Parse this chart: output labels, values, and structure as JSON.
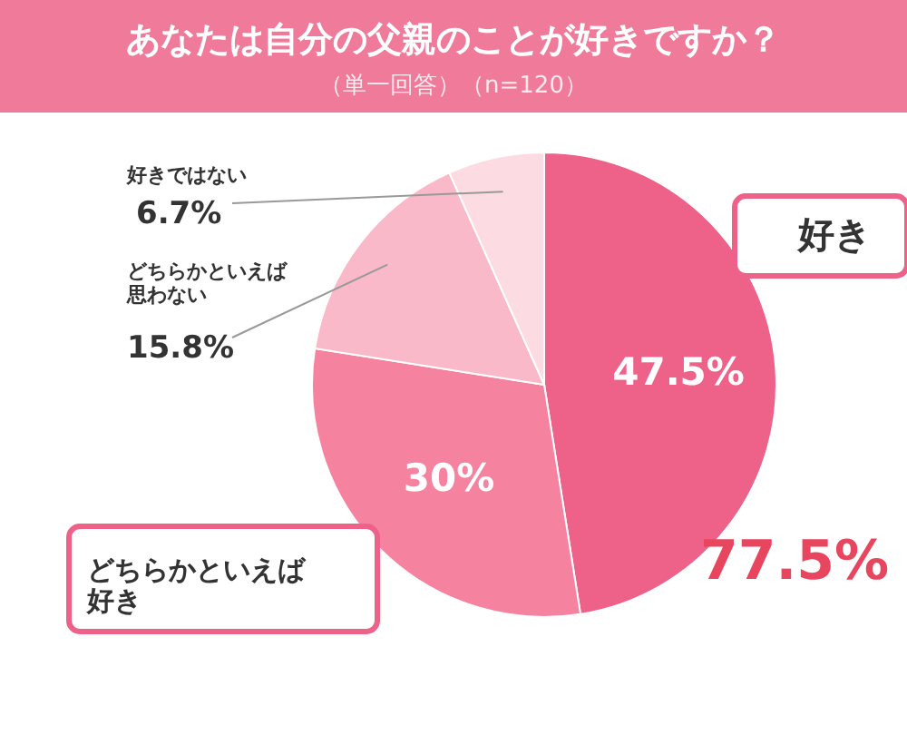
{
  "chart_data": {
    "type": "pie",
    "title": "あなたは自分の父親のことが好きですか？",
    "subtitle": "（単一回答）（n=120）",
    "categories": [
      "好き",
      "どちらかといえば好き",
      "どちらかといえば思わない",
      "好きではない"
    ],
    "values": [
      47.5,
      30,
      15.8,
      6.7
    ],
    "value_labels": [
      "47.5%",
      "30%",
      "15.8%",
      "6.7%"
    ],
    "colors": [
      "#ee6189",
      "#f5829f",
      "#f9b9c8",
      "#fcdbe3"
    ],
    "annotations": [
      "77.5%"
    ]
  }
}
